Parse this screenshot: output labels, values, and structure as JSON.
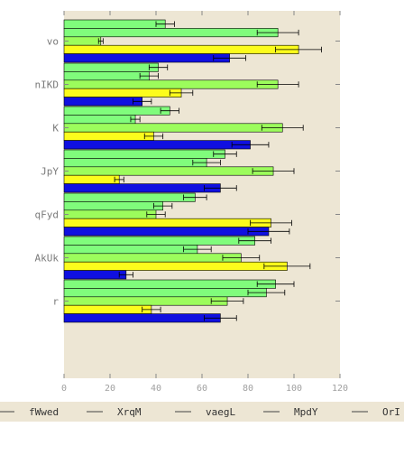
{
  "chart_data": {
    "type": "bar",
    "orientation": "horizontal",
    "categories": [
      "vo",
      "nIKD",
      "K",
      "JpY",
      "qFyd",
      "AkUk",
      "r"
    ],
    "xlim": [
      0,
      120
    ],
    "xticks": [
      "0",
      "20",
      "40",
      "60",
      "80",
      "100",
      "120"
    ],
    "grid": false,
    "legend_placement": "bottom",
    "background_color": "#ede6d4",
    "series": [
      {
        "name": "fWwed",
        "color": "#80fc7c",
        "values": [
          44,
          41,
          46,
          70,
          57,
          83,
          92
        ],
        "errors": [
          4,
          4,
          4,
          5,
          5,
          7,
          8
        ]
      },
      {
        "name": "XrqM",
        "color": "#80fc7c",
        "values": [
          93,
          37,
          31,
          62,
          43,
          58,
          88
        ],
        "errors": [
          9,
          4,
          2,
          6,
          4,
          6,
          8
        ]
      },
      {
        "name": "vaegL",
        "color": "#9cfc5c",
        "values": [
          16,
          93,
          95,
          91,
          40,
          77,
          71
        ],
        "errors": [
          1,
          9,
          9,
          9,
          4,
          8,
          7
        ]
      },
      {
        "name": "MpdY",
        "color": "#fcfc1c",
        "values": [
          102,
          51,
          39,
          24,
          90,
          97,
          38
        ],
        "errors": [
          10,
          5,
          4,
          2,
          9,
          10,
          4
        ]
      },
      {
        "name": "OrI",
        "color": "#1010e0",
        "values": [
          72,
          34,
          81,
          68,
          89,
          27,
          68
        ],
        "errors": [
          7,
          4,
          8,
          7,
          9,
          3,
          7
        ]
      }
    ]
  }
}
